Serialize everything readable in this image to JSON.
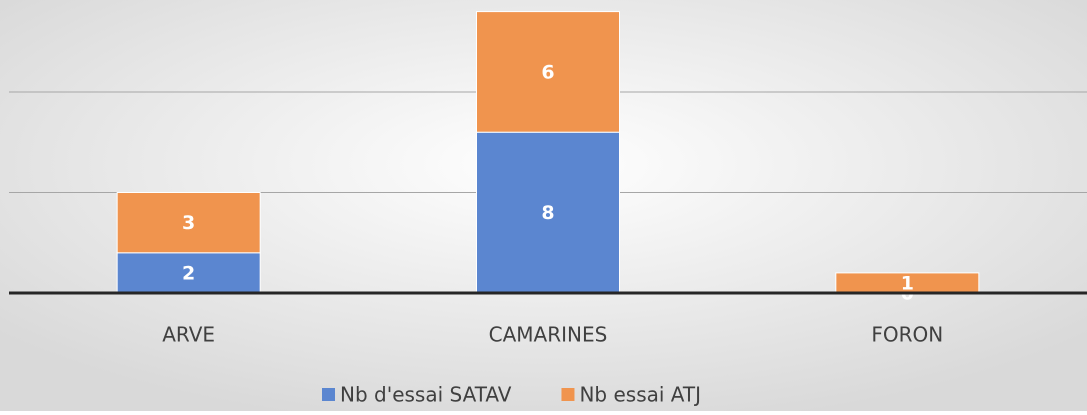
{
  "chart_data": {
    "type": "stacked_bar",
    "categories": [
      "ARVE",
      "CAMARINES",
      "FORON"
    ],
    "series": [
      {
        "name": "Nb d'essai SATAV",
        "color": "#5b86d0",
        "values": [
          2,
          8,
          0
        ]
      },
      {
        "name": "Nb essai ATJ",
        "color": "#f0944e",
        "values": [
          3,
          6,
          1
        ]
      }
    ],
    "ylim": [
      0,
      15
    ],
    "yticks": [
      0,
      5,
      10
    ],
    "grid": true,
    "legend": "bottom"
  }
}
